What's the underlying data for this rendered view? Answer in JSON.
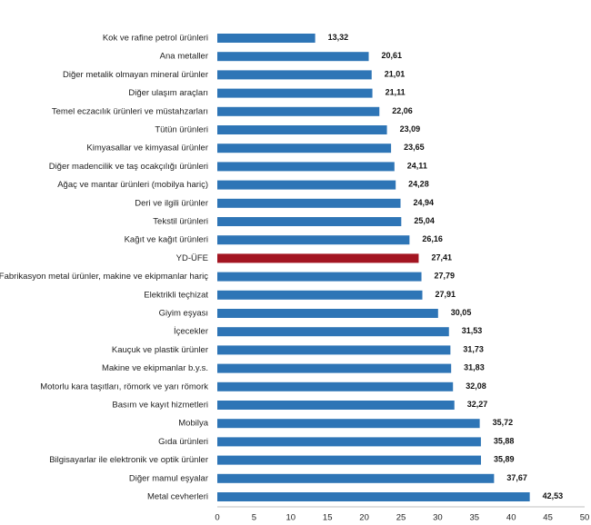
{
  "chart_data": {
    "type": "bar",
    "orientation": "horizontal",
    "categories": [
      "Kok ve rafine petrol ürünleri",
      "Ana metaller",
      "Diğer metalik olmayan mineral ürünler",
      "Diğer ulaşım araçları",
      "Temel eczacılık ürünleri ve müstahzarları",
      "Tütün ürünleri",
      "Kimyasallar ve kimyasal ürünler",
      "Diğer madencilik ve taş ocakçılığı ürünleri",
      "Ağaç ve mantar ürünleri (mobilya hariç)",
      "Deri ve ilgili ürünler",
      "Tekstil ürünleri",
      "Kağıt ve kağıt ürünleri",
      "YD-ÜFE",
      "Fabrikasyon metal ürünler, makine ve ekipmanlar hariç",
      "Elektrikli teçhizat",
      "Giyim eşyası",
      "İçecekler",
      "Kauçuk ve plastik ürünler",
      "Makine ve ekipmanlar b.y.s.",
      "Motorlu kara taşıtları, römork ve yarı römork",
      "Basım ve kayıt hizmetleri",
      "Mobilya",
      "Gıda ürünleri",
      "Bilgisayarlar ile elektronik ve optik ürünler",
      "Diğer mamul eşyalar",
      "Metal cevherleri"
    ],
    "values": [
      13.32,
      20.61,
      21.01,
      21.11,
      22.06,
      23.09,
      23.65,
      24.11,
      24.28,
      24.94,
      25.04,
      26.16,
      27.41,
      27.79,
      27.91,
      30.05,
      31.53,
      31.73,
      31.83,
      32.08,
      32.27,
      35.72,
      35.88,
      35.89,
      37.67,
      42.53
    ],
    "value_labels": [
      "13,32",
      "20,61",
      "21,01",
      "21,11",
      "22,06",
      "23,09",
      "23,65",
      "24,11",
      "24,28",
      "24,94",
      "25,04",
      "26,16",
      "27,41",
      "27,79",
      "27,91",
      "30,05",
      "31,53",
      "31,73",
      "31,83",
      "32,08",
      "32,27",
      "35,72",
      "35,88",
      "35,89",
      "37,67",
      "42,53"
    ],
    "highlight_category": "YD-ÜFE",
    "colors": {
      "bar": "#2e75b6",
      "highlight": "#a31521",
      "axis": "#bfbfbf"
    },
    "xlim": [
      0,
      50
    ],
    "xticks": [
      0,
      5,
      10,
      15,
      20,
      25,
      30,
      35,
      40,
      45,
      50
    ],
    "title": "",
    "xlabel": "",
    "ylabel": "",
    "grid": false,
    "legend": "none"
  }
}
